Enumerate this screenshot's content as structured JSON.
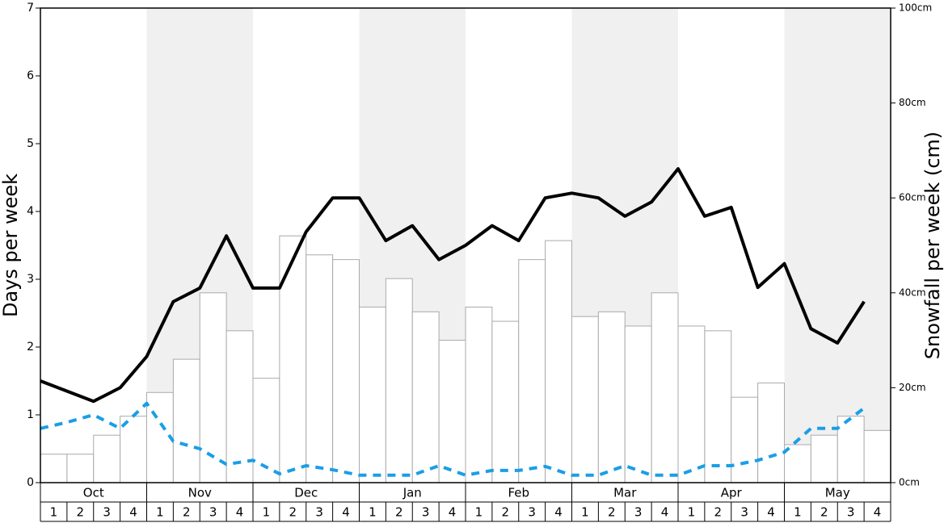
{
  "chart_data": {
    "type": "bar-line",
    "y_label": "Days per week",
    "y2_label": "Snowfall per week (cm)",
    "months": [
      "Oct",
      "Nov",
      "Dec",
      "Jan",
      "Feb",
      "Mar",
      "Apr",
      "May"
    ],
    "categories": [
      "1",
      "2",
      "3",
      "4",
      "1",
      "2",
      "3",
      "4",
      "1",
      "2",
      "3",
      "4",
      "1",
      "2",
      "3",
      "4",
      "1",
      "2",
      "3",
      "4",
      "1",
      "2",
      "3",
      "4",
      "1",
      "2",
      "3",
      "4",
      "1",
      "2",
      "3",
      "4"
    ],
    "ylim": [
      0,
      7
    ],
    "yticks": [
      0,
      1,
      2,
      3,
      4,
      5,
      6,
      7
    ],
    "y2lim": [
      0,
      100
    ],
    "y2ticks": [
      {
        "value": 0,
        "label": "0cm"
      },
      {
        "value": 20,
        "label": "20cm"
      },
      {
        "value": 40,
        "label": "40cm"
      },
      {
        "value": 60,
        "label": "60cm"
      },
      {
        "value": 80,
        "label": "80cm"
      },
      {
        "value": 100,
        "label": "100cm"
      }
    ],
    "series": [
      {
        "type": "bar",
        "axis": "y2",
        "color": "#ffffff",
        "values": [
          6,
          6,
          10,
          14,
          19,
          26,
          40,
          32,
          22,
          52,
          48,
          47,
          37,
          43,
          36,
          30,
          37,
          34,
          47,
          51,
          35,
          36,
          33,
          40,
          33,
          32,
          18,
          21,
          8,
          10,
          14,
          11
        ]
      },
      {
        "type": "line",
        "color": "#000000",
        "values": [
          1.5,
          1.35,
          1.2,
          1.4,
          1.86,
          2.67,
          2.87,
          3.64,
          2.87,
          2.87,
          3.7,
          4.2,
          4.2,
          3.57,
          3.79,
          3.29,
          3.5,
          3.79,
          3.57,
          4.2,
          4.27,
          4.2,
          3.93,
          4.14,
          4.63,
          3.93,
          4.06,
          2.88,
          3.23,
          2.27,
          2.06,
          2.67
        ]
      },
      {
        "type": "dashed",
        "color": "#1a9ee6",
        "values": [
          0.8,
          0.89,
          1.0,
          0.8,
          1.17,
          0.61,
          0.5,
          0.27,
          0.33,
          0.13,
          0.25,
          0.19,
          0.11,
          0.11,
          0.11,
          0.25,
          0.11,
          0.18,
          0.18,
          0.24,
          0.11,
          0.11,
          0.25,
          0.11,
          0.11,
          0.25,
          0.25,
          0.33,
          0.45,
          0.8,
          0.8,
          1.1
        ]
      }
    ]
  }
}
